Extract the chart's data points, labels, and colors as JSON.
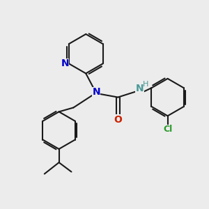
{
  "background_color": "#ececec",
  "bond_color": "#1a1a1a",
  "bond_width": 1.5,
  "atoms": {
    "N_blue": "#0000cc",
    "NH_teal": "#4a9999",
    "O_red": "#cc2200",
    "Cl_green": "#2a9a2a"
  },
  "figsize": [
    3.0,
    3.0
  ],
  "dpi": 100,
  "xlim": [
    0,
    10
  ],
  "ylim": [
    0,
    10
  ]
}
